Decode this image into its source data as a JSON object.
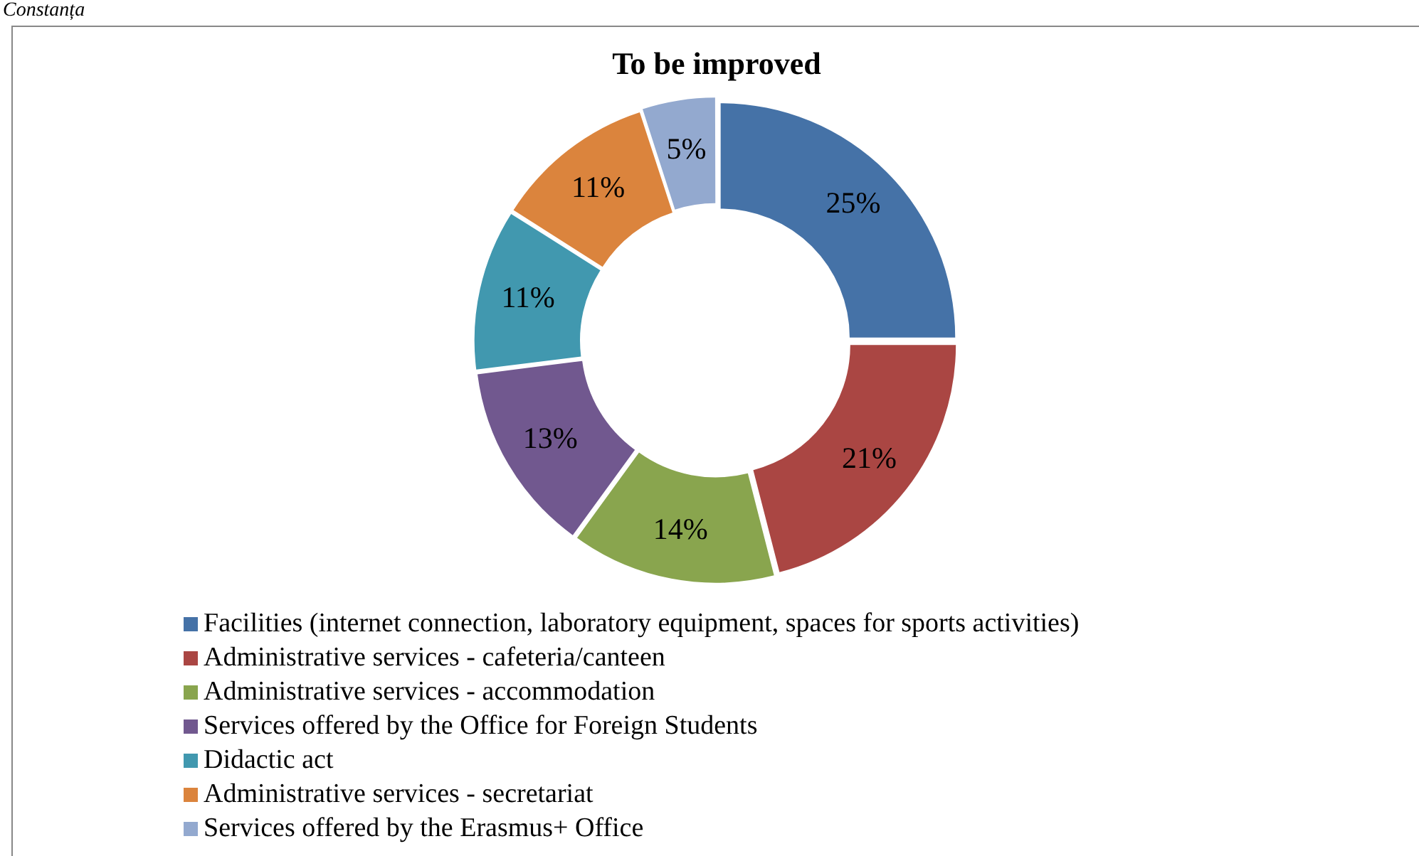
{
  "chart_data": {
    "type": "donut",
    "title": "To be improved",
    "annotations": [
      "Constanța"
    ],
    "categories": [
      "Facilities (internet connection, laboratory equipment, spaces for sports activities)",
      "Administrative services - cafeteria/canteen",
      "Administrative services - accommodation",
      "Services offered by the Office for Foreign Students",
      "Didactic act",
      "Administrative services - secretariat",
      "Services offered by the Erasmus+ Office"
    ],
    "values": [
      25,
      21,
      14,
      13,
      11,
      11,
      5
    ],
    "value_labels": [
      "25%",
      "21%",
      "14%",
      "13%",
      "11%",
      "11%",
      "5%"
    ],
    "colors": [
      "#4572a7",
      "#aa4643",
      "#89a54e",
      "#71588f",
      "#4198af",
      "#db843d",
      "#93a9cf"
    ],
    "legend": "bottom"
  }
}
